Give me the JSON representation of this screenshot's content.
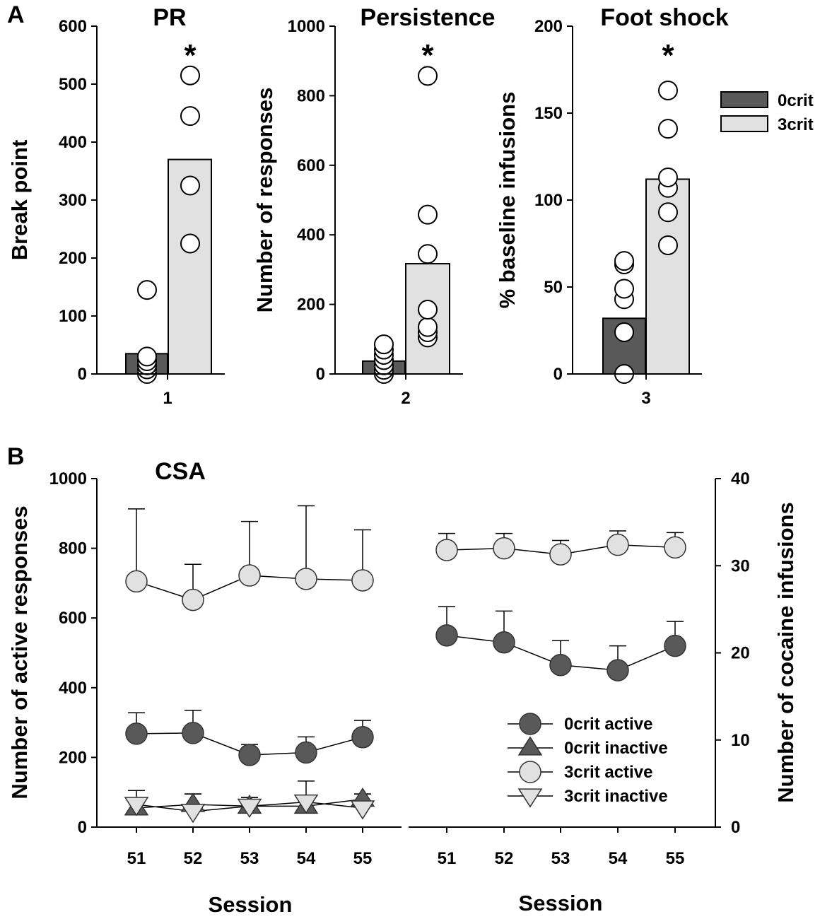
{
  "panel_labels": [
    "A",
    "B"
  ],
  "chart_data": [
    {
      "type": "bar",
      "title": "PR",
      "ylabel": "Break point",
      "ylim": [
        0,
        600
      ],
      "yticks": [
        0,
        100,
        200,
        300,
        400,
        500,
        600
      ],
      "category": "1",
      "series": [
        {
          "name": "0crit",
          "value": 35,
          "points": [
            0,
            8,
            15,
            22,
            30,
            145
          ]
        },
        {
          "name": "3crit",
          "value": 370,
          "points": [
            225,
            325,
            445,
            515
          ]
        }
      ],
      "annotation": "*"
    },
    {
      "type": "bar",
      "title": "Persistence",
      "ylabel": "Number of responses",
      "ylim": [
        0,
        1000
      ],
      "yticks": [
        0,
        200,
        400,
        600,
        800,
        1000
      ],
      "category": "2",
      "series": [
        {
          "name": "0crit",
          "value": 37,
          "points": [
            0,
            12,
            25,
            40,
            55,
            70,
            85
          ]
        },
        {
          "name": "3crit",
          "value": 317,
          "points": [
            105,
            120,
            135,
            185,
            345,
            458,
            857
          ]
        }
      ],
      "annotation": "*"
    },
    {
      "type": "bar",
      "title": "Foot shock",
      "ylabel": "% baseline infusions",
      "ylim": [
        0,
        200
      ],
      "yticks": [
        0,
        50,
        100,
        150,
        200
      ],
      "category": "3",
      "series": [
        {
          "name": "0crit",
          "value": 32,
          "points": [
            0,
            24,
            43,
            49,
            63,
            65
          ]
        },
        {
          "name": "3crit",
          "value": 112,
          "points": [
            74,
            93,
            107,
            113,
            141,
            163
          ]
        }
      ],
      "annotation": "*",
      "legend": [
        "0crit",
        "3crit"
      ],
      "legend_position": "right"
    },
    {
      "type": "line",
      "title": "CSA",
      "xlabel": "Session",
      "ylabel": "Number of active responses",
      "ylim": [
        0,
        1000
      ],
      "yticks": [
        0,
        200,
        400,
        600,
        800,
        1000
      ],
      "x": [
        "51",
        "52",
        "53",
        "54",
        "55"
      ],
      "series": [
        {
          "name": "0crit active",
          "values": [
            268,
            270,
            207,
            214,
            258
          ],
          "errors": [
            60,
            65,
            30,
            45,
            48
          ]
        },
        {
          "name": "0crit inactive",
          "values": [
            55,
            65,
            60,
            60,
            80
          ],
          "errors": [
            25,
            30,
            25,
            30,
            15
          ]
        },
        {
          "name": "3crit active",
          "values": [
            705,
            652,
            722,
            712,
            708
          ],
          "errors": [
            208,
            102,
            155,
            210,
            145
          ]
        },
        {
          "name": "3crit inactive",
          "values": [
            65,
            45,
            60,
            72,
            55
          ],
          "errors": [
            40,
            50,
            25,
            60,
            40
          ]
        }
      ]
    },
    {
      "type": "line",
      "xlabel": "Session",
      "ylabel": "Number of cocaine infusions",
      "ylim": [
        0,
        40
      ],
      "yticks": [
        0,
        10,
        20,
        30,
        40
      ],
      "x": [
        "51",
        "52",
        "53",
        "54",
        "55"
      ],
      "series": [
        {
          "name": "0crit active",
          "values": [
            22.0,
            21.2,
            18.6,
            18.0,
            20.8
          ],
          "errors": [
            3.3,
            3.6,
            2.8,
            2.8,
            2.8
          ]
        },
        {
          "name": "3crit active",
          "values": [
            31.8,
            32.0,
            31.3,
            32.4,
            32.1
          ],
          "errors": [
            1.9,
            1.7,
            1.6,
            1.6,
            1.7
          ]
        }
      ],
      "legend": [
        "0crit active",
        "0crit inactive",
        "3crit active",
        "3crit inactive"
      ],
      "legend_position": "bottom-right"
    }
  ],
  "colors": {
    "dark": "#595959",
    "light": "#e1e1e1",
    "line": "#000000",
    "marker_edge": "#333333"
  }
}
